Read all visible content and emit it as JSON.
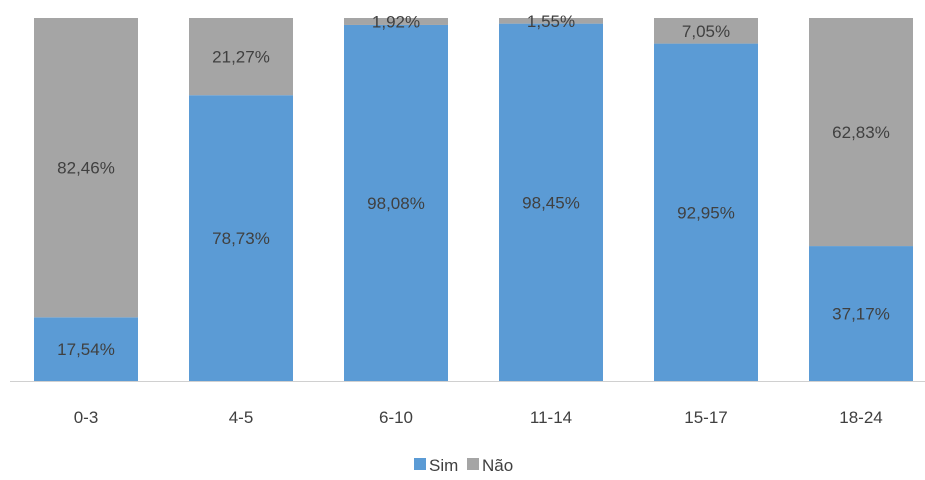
{
  "chart_data": {
    "type": "bar",
    "stacked": true,
    "percent_stacked": true,
    "categories": [
      "0-3",
      "4-5",
      "6-10",
      "11-14",
      "15-17",
      "18-24"
    ],
    "series": [
      {
        "name": "Sim",
        "color": "#5b9bd5",
        "values": [
          17.54,
          78.73,
          98.08,
          98.45,
          92.95,
          37.17
        ],
        "labels": [
          "17,54%",
          "78,73%",
          "98,08%",
          "98,45%",
          "92,95%",
          "37,17%"
        ]
      },
      {
        "name": "Não",
        "color": "#a5a5a5",
        "values": [
          82.46,
          21.27,
          1.92,
          1.55,
          7.05,
          62.83
        ],
        "labels": [
          "82,46%",
          "21,27%",
          "1,92%",
          "1,55%",
          "7,05%",
          "62,83%"
        ]
      }
    ],
    "ylim": [
      0,
      100
    ],
    "grid": false,
    "legend_position": "bottom",
    "title": "",
    "xlabel": "",
    "ylabel": ""
  }
}
